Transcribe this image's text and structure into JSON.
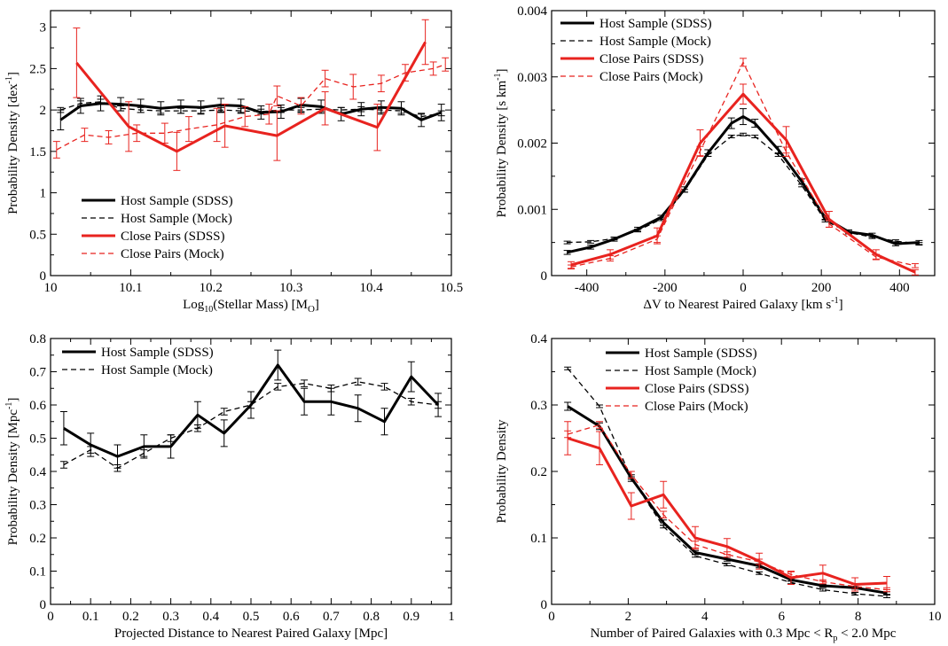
{
  "chart_data": [
    {
      "type": "line",
      "xlabel": "Log",
      "xlabel_sub": "10",
      "xlabel_tail": "(Stellar Mass) [M",
      "xlabel_sym": "O",
      "xlabel_end": "]",
      "ylabel": "Probability Density [dex",
      "ylabel_sup": "-1",
      "ylabel_end": "]",
      "xlim": [
        10.0,
        10.5
      ],
      "ylim": [
        0,
        3.2
      ],
      "xticks": [
        10,
        10.1,
        10.2,
        10.3,
        10.4,
        10.5
      ],
      "xtick_labels": [
        "10",
        "10.1",
        "10.2",
        "10.3",
        "10.4",
        "10.5"
      ],
      "yticks": [
        0,
        0.5,
        1,
        1.5,
        2,
        2.5,
        3
      ],
      "ytick_labels": [
        "0",
        "0.5",
        "1",
        "1.5",
        "2",
        "2.5",
        "3"
      ],
      "legend": [
        "Host Sample (SDSS)",
        "Host Sample (Mock)",
        "Close Pairs (SDSS)",
        "Close Pairs (Mock)"
      ],
      "legend_position": "bottom-left",
      "series": [
        {
          "name": "Host Sample (SDSS)",
          "style": "solid-black",
          "x": [
            10.0125,
            10.0375,
            10.0625,
            10.0875,
            10.1125,
            10.1375,
            10.1625,
            10.1875,
            10.2125,
            10.2375,
            10.2625,
            10.2875,
            10.3125,
            10.3375,
            10.3625,
            10.3875,
            10.4125,
            10.4375,
            10.4625,
            10.4875
          ],
          "y": [
            1.88,
            2.05,
            2.08,
            2.07,
            2.05,
            2.02,
            2.04,
            2.03,
            2.06,
            2.05,
            1.97,
            1.98,
            2.06,
            2.04,
            1.95,
            2.01,
            2.03,
            2.02,
            1.88,
            1.97
          ],
          "err": [
            0.12,
            0.09,
            0.09,
            0.08,
            0.08,
            0.08,
            0.08,
            0.08,
            0.08,
            0.08,
            0.08,
            0.08,
            0.08,
            0.08,
            0.08,
            0.08,
            0.08,
            0.08,
            0.08,
            0.1
          ]
        },
        {
          "name": "Host Sample (Mock)",
          "style": "dashed-black",
          "x": [
            10.0125,
            10.0375,
            10.0625,
            10.0875,
            10.1125,
            10.1375,
            10.1625,
            10.1875,
            10.2125,
            10.2375,
            10.2625,
            10.2875,
            10.3125,
            10.3375,
            10.3625,
            10.3875,
            10.4125,
            10.4375,
            10.4625,
            10.4875
          ],
          "y": [
            2.0,
            2.08,
            2.1,
            2.02,
            2.0,
            1.99,
            1.99,
            1.99,
            2.0,
            1.99,
            1.98,
            2.0,
            2.0,
            2.01,
            2.0,
            2.01,
            2.0,
            1.99,
            1.92,
            1.96
          ],
          "err": [
            0.03,
            0.03,
            0.03,
            0.03,
            0.03,
            0.03,
            0.03,
            0.03,
            0.03,
            0.03,
            0.03,
            0.03,
            0.03,
            0.03,
            0.03,
            0.03,
            0.03,
            0.03,
            0.03,
            0.03
          ]
        },
        {
          "name": "Close Pairs (SDSS)",
          "style": "solid-red",
          "x": [
            10.0325,
            10.0975,
            10.1575,
            10.2175,
            10.2825,
            10.3425,
            10.4075,
            10.4675
          ],
          "y": [
            2.57,
            1.8,
            1.5,
            1.81,
            1.69,
            2.02,
            1.79,
            2.82
          ],
          "err": [
            0.42,
            0.3,
            0.23,
            0.26,
            0.3,
            0.2,
            0.28,
            0.27
          ]
        },
        {
          "name": "Close Pairs (Mock)",
          "style": "dashed-red",
          "x": [
            10.0075,
            10.0425,
            10.0725,
            10.1075,
            10.1425,
            10.1725,
            10.2075,
            10.2425,
            10.2725,
            10.2825,
            10.3125,
            10.3425,
            10.3775,
            10.4125,
            10.4425,
            10.4775,
            10.4925
          ],
          "y": [
            1.52,
            1.7,
            1.67,
            1.72,
            1.72,
            1.77,
            1.82,
            1.92,
            1.95,
            2.17,
            2.05,
            2.38,
            2.28,
            2.32,
            2.45,
            2.5,
            2.55
          ],
          "err": [
            0.1,
            0.08,
            0.08,
            0.1,
            0.12,
            0.15,
            0.2,
            0.12,
            0.12,
            0.12,
            0.1,
            0.1,
            0.15,
            0.1,
            0.1,
            0.08,
            0.08
          ]
        }
      ]
    },
    {
      "type": "line",
      "xlabel": "ΔV to Nearest Paired Galaxy [km s",
      "xlabel_sup": "-1",
      "xlabel_end": "]",
      "ylabel": "Probability Density [s km",
      "ylabel_sup": "-1",
      "ylabel_end": "]",
      "xlim": [
        -490,
        490
      ],
      "ylim": [
        0,
        0.004
      ],
      "xticks": [
        -400,
        -200,
        0,
        200,
        400
      ],
      "xtick_labels": [
        "-400",
        "-200",
        "0",
        "200",
        "400"
      ],
      "yticks": [
        0,
        0.001,
        0.002,
        0.003,
        0.004
      ],
      "ytick_labels": [
        "0",
        "0.001",
        "0.002",
        "0.003",
        "0.004"
      ],
      "legend": [
        "Host Sample (SDSS)",
        "Host Sample (Mock)",
        "Close Pairs (SDSS)",
        "Close Pairs (Mock)"
      ],
      "legend_position": "top-left",
      "series": [
        {
          "name": "Host Sample (SDSS)",
          "style": "solid-black",
          "x": [
            -450,
            -390,
            -330,
            -270,
            -210,
            -150,
            -90,
            -30,
            0,
            30,
            90,
            150,
            210,
            270,
            330,
            390,
            450
          ],
          "y": [
            0.00035,
            0.00043,
            0.00055,
            0.0007,
            0.00088,
            0.0013,
            0.00185,
            0.0023,
            0.0024,
            0.0023,
            0.0019,
            0.00142,
            0.00087,
            0.00066,
            0.00061,
            0.00048,
            0.0005
          ],
          "err": [
            3e-05,
            3e-05,
            3e-05,
            3e-05,
            3e-05,
            4e-05,
            5e-05,
            8e-05,
            0.00012,
            6e-05,
            5e-05,
            4e-05,
            3e-05,
            3e-05,
            3e-05,
            3e-05,
            3e-05
          ]
        },
        {
          "name": "Host Sample (Mock)",
          "style": "dashed-black",
          "x": [
            -450,
            -390,
            -330,
            -270,
            -210,
            -150,
            -90,
            -30,
            0,
            30,
            90,
            150,
            210,
            270,
            330,
            390,
            450
          ],
          "y": [
            0.0005,
            0.00051,
            0.00056,
            0.00068,
            0.00085,
            0.00128,
            0.00182,
            0.0021,
            0.00213,
            0.0021,
            0.00182,
            0.00136,
            0.00083,
            0.00065,
            0.00058,
            0.00052,
            0.00048
          ],
          "err": [
            2e-05,
            2e-05,
            2e-05,
            2e-05,
            2e-05,
            2e-05,
            2e-05,
            2e-05,
            2e-05,
            2e-05,
            2e-05,
            2e-05,
            2e-05,
            2e-05,
            2e-05,
            2e-05,
            2e-05
          ]
        },
        {
          "name": "Close Pairs (SDSS)",
          "style": "solid-red",
          "x": [
            -440,
            -340,
            -220,
            -110,
            0,
            110,
            220,
            340,
            440
          ],
          "y": [
            0.00016,
            0.00032,
            0.0006,
            0.002,
            0.00274,
            0.00205,
            0.00085,
            0.00032,
            5e-05
          ],
          "err": [
            5e-05,
            7e-05,
            0.00012,
            0.0002,
            0.00015,
            0.0002,
            0.00012,
            7e-05,
            4e-05
          ]
        },
        {
          "name": "Close Pairs (Mock)",
          "style": "dashed-red",
          "x": [
            -440,
            -340,
            -220,
            -110,
            0,
            110,
            220,
            340,
            440
          ],
          "y": [
            0.00013,
            0.00026,
            0.00055,
            0.00188,
            0.00322,
            0.00187,
            0.00078,
            0.00028,
            0.00015
          ],
          "err": [
            3e-05,
            4e-05,
            5e-05,
            7e-05,
            6e-05,
            7e-05,
            5e-05,
            4e-05,
            3e-05
          ]
        }
      ]
    },
    {
      "type": "line",
      "xlabel": "Projected Distance to Nearest Paired Galaxy [Mpc]",
      "ylabel": "Probability Density [Mpc",
      "ylabel_sup": "-1",
      "ylabel_end": "]",
      "xlim": [
        0,
        1
      ],
      "ylim": [
        0,
        0.8
      ],
      "xticks": [
        0,
        0.1,
        0.2,
        0.3,
        0.4,
        0.5,
        0.6,
        0.7,
        0.8,
        0.9,
        1
      ],
      "xtick_labels": [
        "0",
        "0.1",
        "0.2",
        "0.3",
        "0.4",
        "0.5",
        "0.6",
        "0.7",
        "0.8",
        "0.9",
        "1"
      ],
      "yticks": [
        0,
        0.1,
        0.2,
        0.3,
        0.4,
        0.5,
        0.6,
        0.7,
        0.8
      ],
      "ytick_labels": [
        "0",
        "0.1",
        "0.2",
        "0.3",
        "0.4",
        "0.5",
        "0.6",
        "0.7",
        "0.8"
      ],
      "legend": [
        "Host Sample (SDSS)",
        "Host Sample (Mock)"
      ],
      "legend_position": "top-left",
      "series": [
        {
          "name": "Host Sample (SDSS)",
          "style": "solid-black",
          "x": [
            0.033,
            0.1,
            0.167,
            0.233,
            0.3,
            0.367,
            0.433,
            0.5,
            0.567,
            0.633,
            0.7,
            0.767,
            0.833,
            0.9,
            0.967
          ],
          "y": [
            0.53,
            0.48,
            0.445,
            0.475,
            0.475,
            0.57,
            0.515,
            0.6,
            0.72,
            0.61,
            0.61,
            0.59,
            0.55,
            0.685,
            0.6
          ],
          "err": [
            0.05,
            0.035,
            0.035,
            0.035,
            0.035,
            0.04,
            0.04,
            0.04,
            0.045,
            0.04,
            0.04,
            0.04,
            0.04,
            0.045,
            0.035
          ]
        },
        {
          "name": "Host Sample (Mock)",
          "style": "dashed-black",
          "x": [
            0.033,
            0.1,
            0.167,
            0.233,
            0.3,
            0.367,
            0.433,
            0.5,
            0.567,
            0.633,
            0.7,
            0.767,
            0.833,
            0.9,
            0.967
          ],
          "y": [
            0.42,
            0.465,
            0.41,
            0.455,
            0.5,
            0.53,
            0.58,
            0.6,
            0.655,
            0.665,
            0.65,
            0.67,
            0.655,
            0.61,
            0.6
          ],
          "err": [
            0.01,
            0.01,
            0.01,
            0.01,
            0.01,
            0.01,
            0.01,
            0.01,
            0.01,
            0.01,
            0.01,
            0.01,
            0.01,
            0.01,
            0.01
          ]
        }
      ]
    },
    {
      "type": "line",
      "xlabel": "Number of Paired Galaxies with 0.3 Mpc < R",
      "xlabel_sub": "p",
      "xlabel_end": " < 2.0 Mpc",
      "ylabel": "Probability Density",
      "xlim": [
        0,
        10
      ],
      "ylim": [
        0,
        0.4
      ],
      "xticks": [
        0,
        2,
        4,
        6,
        8,
        10
      ],
      "xtick_labels": [
        "0",
        "2",
        "4",
        "6",
        "8",
        "10"
      ],
      "yticks": [
        0,
        0.1,
        0.2,
        0.3,
        0.4
      ],
      "ytick_labels": [
        "0",
        "0.1",
        "0.2",
        "0.3",
        "0.4"
      ],
      "legend": [
        "Host Sample (SDSS)",
        "Host Sample (Mock)",
        "Close Pairs (SDSS)",
        "Close Pairs (Mock)"
      ],
      "legend_position": "top-center",
      "series": [
        {
          "name": "Host Sample (SDSS)",
          "style": "solid-black",
          "x": [
            0.42,
            1.25,
            2.08,
            2.92,
            3.75,
            4.58,
            5.42,
            6.25,
            7.08,
            7.92,
            8.75
          ],
          "y": [
            0.298,
            0.268,
            0.19,
            0.123,
            0.078,
            0.068,
            0.058,
            0.037,
            0.028,
            0.025,
            0.017
          ],
          "err": [
            0.006,
            0.005,
            0.005,
            0.004,
            0.003,
            0.003,
            0.003,
            0.002,
            0.002,
            0.002,
            0.002
          ]
        },
        {
          "name": "Host Sample (Mock)",
          "style": "dashed-black",
          "x": [
            0.42,
            1.25,
            2.08,
            2.92,
            3.75,
            4.58,
            5.42,
            6.25,
            7.08,
            7.92,
            8.75
          ],
          "y": [
            0.355,
            0.298,
            0.19,
            0.117,
            0.073,
            0.06,
            0.047,
            0.033,
            0.022,
            0.016,
            0.012
          ],
          "err": [
            0.002,
            0.002,
            0.002,
            0.002,
            0.002,
            0.002,
            0.002,
            0.002,
            0.002,
            0.002,
            0.002
          ]
        },
        {
          "name": "Close Pairs (SDSS)",
          "style": "solid-red",
          "x": [
            0.42,
            1.25,
            2.08,
            2.92,
            3.75,
            4.58,
            5.42,
            6.25,
            7.08,
            7.92,
            8.75
          ],
          "y": [
            0.25,
            0.235,
            0.148,
            0.165,
            0.1,
            0.087,
            0.065,
            0.04,
            0.047,
            0.03,
            0.032
          ],
          "err": [
            0.025,
            0.025,
            0.02,
            0.02,
            0.017,
            0.012,
            0.012,
            0.01,
            0.012,
            0.01,
            0.01
          ]
        },
        {
          "name": "Close Pairs (Mock)",
          "style": "dashed-red",
          "x": [
            0.42,
            1.25,
            2.08,
            2.92,
            3.75,
            4.58,
            5.42,
            6.25,
            7.08,
            7.92,
            8.75
          ],
          "y": [
            0.256,
            0.27,
            0.195,
            0.135,
            0.09,
            0.075,
            0.064,
            0.045,
            0.034,
            0.027,
            0.022
          ],
          "err": [
            0.005,
            0.005,
            0.005,
            0.005,
            0.005,
            0.004,
            0.004,
            0.004,
            0.003,
            0.003,
            0.003
          ]
        }
      ]
    }
  ]
}
